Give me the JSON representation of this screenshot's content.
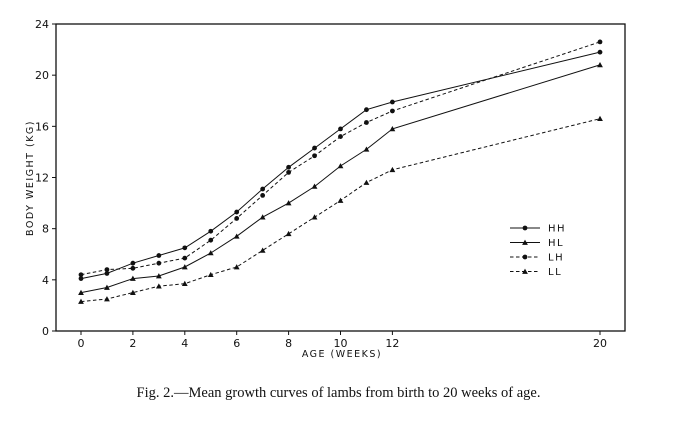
{
  "caption": "Fig. 2.—Mean growth curves of lambs from birth to 20 weeks of age.",
  "chart_data": {
    "type": "line",
    "title": "",
    "xlabel": "AGE (WEEKS)",
    "ylabel": "BODY WEIGHT (KG)",
    "xlim": [
      -1,
      21
    ],
    "ylim": [
      0,
      24
    ],
    "x_ticks": [
      0,
      2,
      4,
      6,
      8,
      10,
      12,
      20
    ],
    "y_ticks": [
      0,
      4,
      8,
      12,
      16,
      20,
      24
    ],
    "grid": false,
    "legend_position": "right",
    "series": [
      {
        "name": "HH",
        "line_style": "solid",
        "marker": "circle",
        "x": [
          0,
          1,
          2,
          3,
          4,
          5,
          6,
          7,
          8,
          9,
          10,
          11,
          12,
          20
        ],
        "y": [
          4.1,
          4.5,
          5.3,
          5.9,
          6.5,
          7.8,
          9.3,
          11.1,
          12.8,
          14.3,
          15.8,
          17.3,
          17.9,
          21.8
        ]
      },
      {
        "name": "HL",
        "line_style": "solid",
        "marker": "triangle",
        "x": [
          0,
          1,
          2,
          3,
          4,
          5,
          6,
          7,
          8,
          9,
          10,
          11,
          12,
          20
        ],
        "y": [
          3.0,
          3.4,
          4.1,
          4.3,
          5.0,
          6.1,
          7.4,
          8.9,
          10.0,
          11.3,
          12.9,
          14.2,
          15.8,
          20.8
        ]
      },
      {
        "name": "LH",
        "line_style": "dashed",
        "marker": "circle",
        "x": [
          0,
          1,
          2,
          3,
          4,
          5,
          6,
          7,
          8,
          9,
          10,
          11,
          12,
          20
        ],
        "y": [
          4.4,
          4.8,
          4.9,
          5.3,
          5.7,
          7.1,
          8.8,
          10.6,
          12.4,
          13.7,
          15.2,
          16.3,
          17.2,
          22.6
        ]
      },
      {
        "name": "LL",
        "line_style": "dashed",
        "marker": "triangle",
        "x": [
          0,
          1,
          2,
          3,
          4,
          5,
          6,
          7,
          8,
          9,
          10,
          11,
          12,
          20
        ],
        "y": [
          2.3,
          2.5,
          3.0,
          3.5,
          3.7,
          4.4,
          5.0,
          6.3,
          7.6,
          8.9,
          10.2,
          11.6,
          12.6,
          16.6
        ]
      }
    ]
  }
}
